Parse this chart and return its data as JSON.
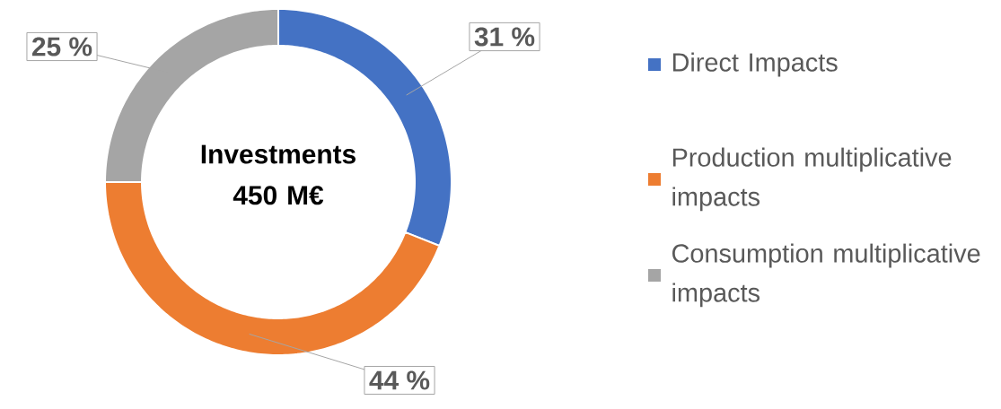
{
  "chart_data": {
    "type": "donut",
    "title": "Investments 450 M€",
    "categories": [
      "Direct Impacts",
      "Production multiplicative impacts",
      "Consumption multiplicative impacts"
    ],
    "values": [
      31,
      44,
      25
    ],
    "colors": [
      "#4472c4",
      "#ed7d31",
      "#a5a5a5"
    ],
    "value_labels": [
      "31 %",
      "44 %",
      "25 %"
    ],
    "legend": "right"
  }
}
